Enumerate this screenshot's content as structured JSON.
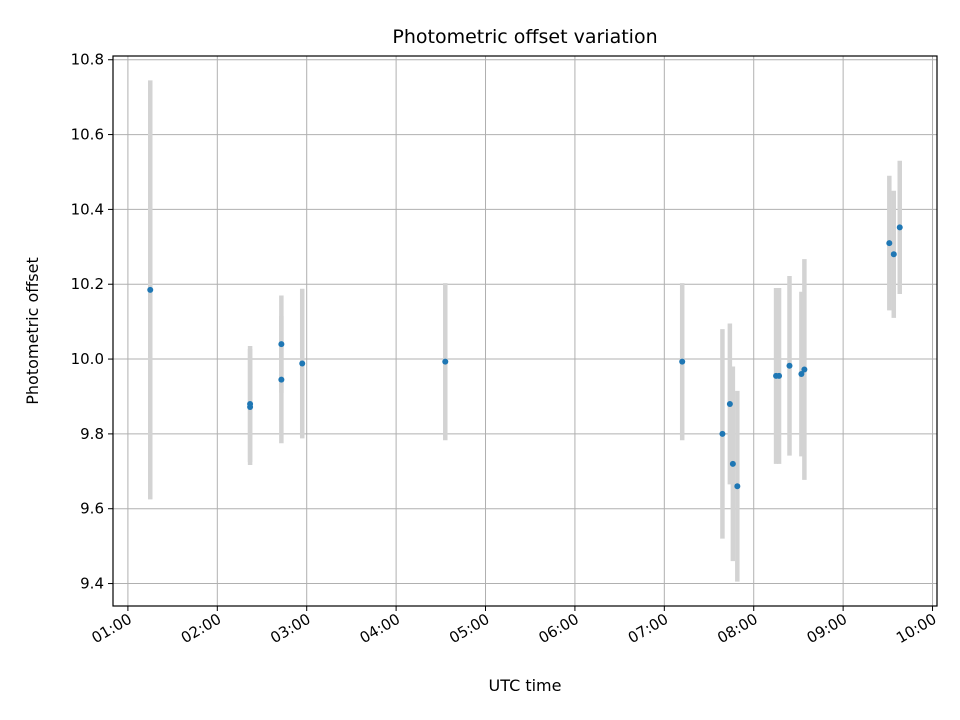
{
  "chart_data": {
    "type": "scatter",
    "title": "Photometric offset variation",
    "xlabel": "UTC time",
    "ylabel": "Photometric offset",
    "x_unit": "UTC time (HH:MM)",
    "xlim": [
      "00:50",
      "10:03"
    ],
    "ylim": [
      9.34,
      10.81
    ],
    "xticks": [
      "01:00",
      "02:00",
      "03:00",
      "04:00",
      "05:00",
      "06:00",
      "07:00",
      "08:00",
      "09:00",
      "10:00"
    ],
    "yticks": [
      "9.4",
      "9.6",
      "9.8",
      "10.0",
      "10.2",
      "10.4",
      "10.6",
      "10.8"
    ],
    "ytick_values": [
      9.4,
      9.6,
      9.8,
      10.0,
      10.2,
      10.4,
      10.6,
      10.8
    ],
    "grid": true,
    "colors": {
      "point": "#1f77b4",
      "errorbar": "#d3d3d3",
      "grid": "#b0b0b0"
    },
    "points": [
      {
        "x": "01:15",
        "y": 10.185,
        "err": 0.56
      },
      {
        "x": "02:22",
        "y": 9.88,
        "err": 0.155
      },
      {
        "x": "02:22",
        "y": 9.872,
        "err": 0.155
      },
      {
        "x": "02:43",
        "y": 9.945,
        "err": 0.17
      },
      {
        "x": "02:43",
        "y": 10.04,
        "err": 0.13
      },
      {
        "x": "02:57",
        "y": 9.988,
        "err": 0.2
      },
      {
        "x": "04:33",
        "y": 9.993,
        "err": 0.21
      },
      {
        "x": "07:12",
        "y": 9.993,
        "err": 0.21
      },
      {
        "x": "07:39",
        "y": 9.8,
        "err": 0.28
      },
      {
        "x": "07:44",
        "y": 9.88,
        "err": 0.215
      },
      {
        "x": "07:46",
        "y": 9.72,
        "err": 0.26
      },
      {
        "x": "07:49",
        "y": 9.66,
        "err": 0.255
      },
      {
        "x": "08:15",
        "y": 9.955,
        "err": 0.235
      },
      {
        "x": "08:17",
        "y": 9.955,
        "err": 0.235
      },
      {
        "x": "08:24",
        "y": 9.982,
        "err": 0.24
      },
      {
        "x": "08:32",
        "y": 9.96,
        "err": 0.22
      },
      {
        "x": "08:34",
        "y": 9.972,
        "err": 0.295
      },
      {
        "x": "09:31",
        "y": 10.31,
        "err": 0.18
      },
      {
        "x": "09:34",
        "y": 10.28,
        "err": 0.17
      },
      {
        "x": "09:38",
        "y": 10.352,
        "err": 0.178
      }
    ]
  }
}
